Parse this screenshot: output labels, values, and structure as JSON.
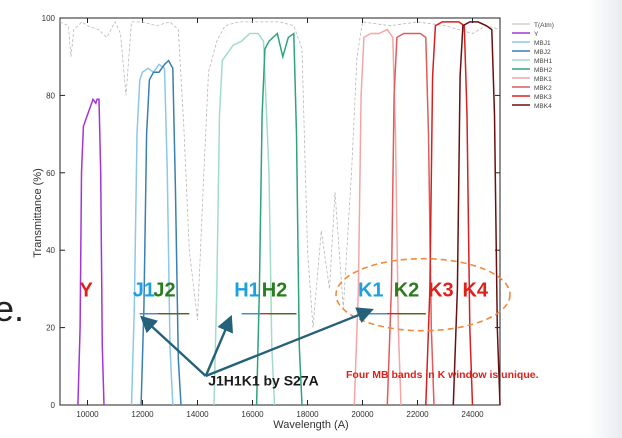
{
  "edge_text": "e.",
  "chart_data": {
    "type": "line",
    "title": "",
    "xlabel": "Wavelength (A)",
    "ylabel": "Transmittance (%)",
    "xlim": [
      9000,
      25000
    ],
    "ylim": [
      0,
      100
    ],
    "xticks": [
      10000,
      12000,
      14000,
      16000,
      18000,
      20000,
      22000,
      24000
    ],
    "yticks": [
      0,
      20,
      40,
      60,
      80,
      100
    ],
    "grid": false,
    "legend_position": "top-right",
    "series": [
      {
        "name": "T(Atm)",
        "color": "#b8b8b8",
        "x": [
          9000,
          9300,
          9400,
          9500,
          9800,
          10000,
          10400,
          10700,
          11000,
          11200,
          11400,
          11600,
          12000,
          12500,
          13000,
          13300,
          13500,
          13700,
          14000,
          14200,
          14400,
          14700,
          15000,
          15500,
          16000,
          16500,
          17000,
          17500,
          17800,
          18000,
          18200,
          18500,
          18800,
          19000,
          19300,
          19600,
          19800,
          20000,
          21000,
          22000,
          23000,
          23500,
          24000,
          24500,
          25000
        ],
        "y": [
          99,
          98,
          90,
          97,
          99,
          98,
          97,
          95,
          99,
          96,
          80,
          99,
          99,
          98,
          99,
          97,
          72,
          40,
          22,
          55,
          86,
          94,
          98,
          99,
          99,
          99,
          99,
          98,
          92,
          40,
          20,
          45,
          30,
          55,
          25,
          60,
          90,
          99,
          98,
          99,
          98,
          97,
          96,
          98,
          97
        ]
      },
      {
        "name": "Y",
        "color": "#a335d6",
        "x": [
          9650,
          9730,
          9780,
          9850,
          10000,
          10100,
          10200,
          10300,
          10350,
          10420,
          10480,
          10540,
          10600
        ],
        "y": [
          0,
          20,
          60,
          72,
          75,
          77,
          79,
          78,
          79,
          79,
          60,
          15,
          0
        ]
      },
      {
        "name": "MBJ1",
        "color": "#8dc8e8",
        "x": [
          11600,
          11700,
          11800,
          11900,
          12000,
          12200,
          12400,
          12600,
          12800,
          12900,
          13000,
          13100
        ],
        "y": [
          0,
          25,
          70,
          84,
          86,
          87,
          86,
          88,
          87,
          60,
          15,
          0
        ]
      },
      {
        "name": "MBJ2",
        "color": "#3a7fb2",
        "x": [
          11950,
          12050,
          12150,
          12250,
          12400,
          12600,
          12800,
          12950,
          13100,
          13200,
          13300,
          13400
        ],
        "y": [
          0,
          25,
          70,
          84,
          86,
          86,
          88,
          89,
          87,
          55,
          12,
          0
        ]
      },
      {
        "name": "MBH1",
        "color": "#a2dcc4",
        "x": [
          14600,
          14700,
          14800,
          14900,
          15000,
          15300,
          15600,
          15900,
          16200,
          16400,
          16600,
          16700,
          16800
        ],
        "y": [
          0,
          30,
          75,
          89,
          90,
          93,
          94,
          96,
          96,
          94,
          60,
          15,
          0
        ]
      },
      {
        "name": "MBH2",
        "color": "#2ea37d",
        "x": [
          16150,
          16250,
          16350,
          16450,
          16600,
          16900,
          17100,
          17300,
          17500,
          17600,
          17700,
          17800
        ],
        "y": [
          0,
          30,
          75,
          92,
          94,
          96,
          90,
          95,
          96,
          70,
          15,
          0
        ]
      },
      {
        "name": "MBK1",
        "color": "#f4a6a6",
        "x": [
          19700,
          19850,
          19950,
          20050,
          20300,
          20600,
          20900,
          21100,
          21200,
          21300,
          21400
        ],
        "y": [
          0,
          30,
          80,
          95,
          96,
          96,
          97,
          95,
          70,
          20,
          0
        ]
      },
      {
        "name": "MBK2",
        "color": "#e05c5c",
        "x": [
          20900,
          21050,
          21150,
          21250,
          21500,
          21800,
          22100,
          22300,
          22400,
          22500,
          22600
        ],
        "y": [
          0,
          30,
          80,
          95,
          96,
          96,
          96,
          95,
          70,
          20,
          0
        ]
      },
      {
        "name": "MBK3",
        "color": "#d62020",
        "x": [
          22300,
          22450,
          22550,
          22650,
          22900,
          23200,
          23500,
          23700,
          23800,
          23900,
          24000
        ],
        "y": [
          0,
          30,
          85,
          98,
          99,
          99,
          99,
          98,
          75,
          20,
          0
        ]
      },
      {
        "name": "MBK4",
        "color": "#6a1010",
        "x": [
          23300,
          23450,
          23550,
          23650,
          23900,
          24200,
          24500,
          24700,
          24800,
          24900,
          25000
        ],
        "y": [
          0,
          30,
          85,
          98,
          99,
          99,
          98,
          97,
          75,
          20,
          0
        ]
      }
    ],
    "band_labels": [
      {
        "text": "Y",
        "x": 9950,
        "y": 28,
        "color": "#e0201b"
      },
      {
        "text": "J1",
        "x": 12050,
        "y": 28,
        "color": "#1ea0e0"
      },
      {
        "text": "J2",
        "x": 12800,
        "y": 28,
        "color": "#2a7d1e"
      },
      {
        "text": "H1",
        "x": 15800,
        "y": 28,
        "color": "#1ea0e0"
      },
      {
        "text": "H2",
        "x": 16800,
        "y": 28,
        "color": "#2a7d1e"
      },
      {
        "text": "K1",
        "x": 20300,
        "y": 28,
        "color": "#1ea0e0"
      },
      {
        "text": "K2",
        "x": 21600,
        "y": 28,
        "color": "#2a7d1e"
      },
      {
        "text": "K3",
        "x": 22850,
        "y": 28,
        "color": "#e0201b"
      },
      {
        "text": "K4",
        "x": 24100,
        "y": 28,
        "color": "#e0201b"
      }
    ],
    "annotations": [
      {
        "text": "J1H1K1 by S27A",
        "x": 16400,
        "y": 5,
        "color": "#1a1a1a"
      },
      {
        "text": "Four MB bands in K window is unique.",
        "x": 22900,
        "y": 7,
        "color": "#e0201b"
      }
    ],
    "arrow_color": "#24617a",
    "ellipse_color": "#f08a3c"
  }
}
